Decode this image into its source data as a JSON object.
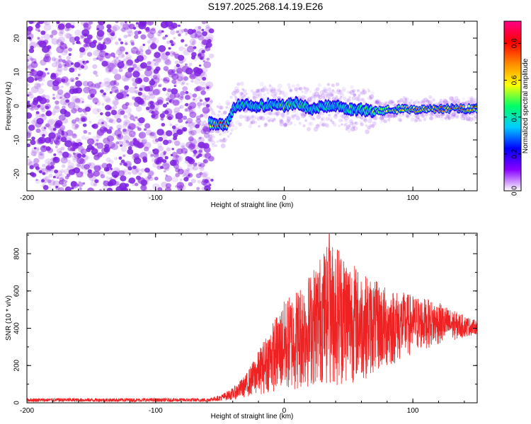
{
  "title": "S197.2025.268.14.19.E26",
  "colors": {
    "snr_line": "#ee2222",
    "noise_blob": "#8a2be2",
    "colormap": [
      "#ffffff",
      "#8800ff",
      "#0000ff",
      "#00ccff",
      "#00ff66",
      "#ffff00",
      "#ff8800",
      "#ff0000",
      "#ff0088"
    ]
  },
  "chart_data": [
    {
      "type": "heatmap",
      "name": "spectrogram",
      "xlabel": "Height of straight line (km)",
      "ylabel": "Frequency (Hz)",
      "xlim": [
        -200,
        150
      ],
      "ylim": [
        -25,
        25
      ],
      "xticks": [
        -200,
        -100,
        0,
        100
      ],
      "xtick_labels": [
        "-200",
        "-100",
        "0",
        "100"
      ],
      "yticks": [
        -20,
        -10,
        0,
        10,
        20
      ],
      "ytick_labels": [
        "-20",
        "-10",
        "0",
        "10",
        "20"
      ],
      "noise_region_x": [
        -200,
        -56
      ],
      "signal_track": {
        "x": [
          -58,
          -52,
          -45,
          -42,
          -38,
          -30,
          -20,
          -10,
          0,
          10,
          20,
          30,
          40,
          50,
          60,
          70,
          80,
          90,
          100,
          110,
          120,
          130,
          140,
          150
        ],
        "y": [
          -5,
          -5.5,
          -5.5,
          -3,
          0,
          0.5,
          0,
          0.5,
          0,
          1,
          -1,
          0,
          0,
          -1,
          -1,
          -1.5,
          -1.2,
          -1,
          -1,
          -0.8,
          -0.8,
          -0.8,
          -0.8,
          -0.8
        ],
        "amplitude": [
          0.5,
          0.7,
          0.75,
          0.4,
          0.4,
          0.45,
          0.45,
          0.45,
          0.5,
          0.5,
          0.4,
          0.45,
          0.4,
          0.45,
          0.5,
          0.55,
          0.55,
          0.6,
          0.65,
          0.7,
          0.75,
          0.75,
          0.75,
          0.7
        ]
      },
      "colorbar": {
        "label": "Normalized spectral amplitude",
        "range": [
          0,
          0.92
        ],
        "ticks": [
          0.0,
          0.2,
          0.4,
          0.6,
          0.8
        ],
        "tick_labels": [
          "0.0",
          "0.2",
          "0.4",
          "0.6",
          "0.8"
        ]
      }
    },
    {
      "type": "line",
      "name": "snr",
      "xlabel": "Height of straight line (km)",
      "ylabel": "SNR (10 * v/v)",
      "xlim": [
        -200,
        150
      ],
      "ylim": [
        0,
        910
      ],
      "xticks": [
        -200,
        -100,
        0,
        100
      ],
      "xtick_labels": [
        "-200",
        "-100",
        "0",
        "100"
      ],
      "yticks": [
        0,
        200,
        400,
        600,
        800
      ],
      "ytick_labels": [
        "0",
        "200",
        "400",
        "600",
        "800"
      ],
      "envelope": {
        "x": [
          -200,
          -60,
          -50,
          -40,
          -30,
          -20,
          -10,
          0,
          10,
          20,
          30,
          40,
          50,
          60,
          70,
          80,
          90,
          100,
          110,
          120,
          130,
          140,
          150
        ],
        "upper": [
          25,
          25,
          40,
          80,
          150,
          280,
          420,
          550,
          620,
          700,
          820,
          880,
          790,
          700,
          660,
          620,
          600,
          580,
          560,
          540,
          500,
          470,
          440
        ],
        "lower": [
          5,
          5,
          10,
          15,
          30,
          40,
          60,
          50,
          60,
          80,
          100,
          80,
          100,
          120,
          150,
          180,
          220,
          260,
          290,
          310,
          330,
          350,
          370
        ]
      },
      "peak": {
        "x": 35,
        "y": 905
      }
    }
  ]
}
